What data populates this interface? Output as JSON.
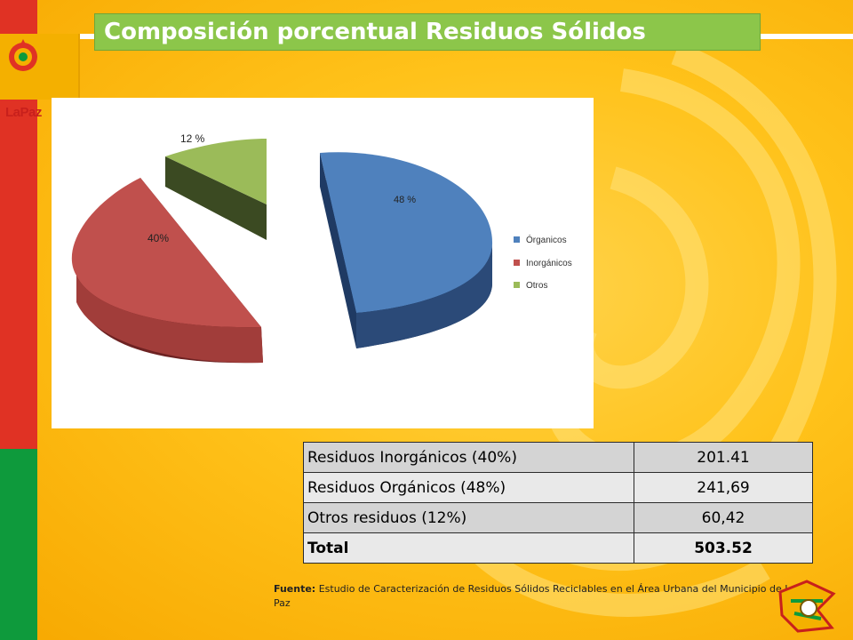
{
  "title": "Composición porcentual Residuos Sólidos",
  "logo": {
    "text": "LaPaz",
    "icon": "la-paz-municipal-logo"
  },
  "chart_data": {
    "type": "pie",
    "style": "3d-exploded",
    "categories": [
      "Órganicos",
      "Inorgánicos",
      "Otros"
    ],
    "values": [
      48,
      40,
      12
    ],
    "data_labels": [
      "48 %",
      "40%",
      "12 %"
    ],
    "colors": [
      "#4f81bd",
      "#c0504d",
      "#9bbb59"
    ],
    "legend": "right"
  },
  "table": {
    "rows": [
      {
        "label": "Residuos Inorgánicos (40%)",
        "value": "201.41"
      },
      {
        "label": "Residuos Orgánicos (48%)",
        "value": "241,69"
      },
      {
        "label": "Otros residuos (12%)",
        "value": "60,42"
      }
    ],
    "total": {
      "label": "Total",
      "value": "503.52"
    }
  },
  "source": {
    "prefix": "Fuente:",
    "text": " Estudio de Caracterización de Residuos Sólidos Reciclables en el Área Urbana del Municipio de La Paz"
  },
  "colors": {
    "background": "#ffc21a",
    "flag_red": "#e03224",
    "flag_green": "#0e9a3c",
    "title_bar": "#8cc64a"
  }
}
